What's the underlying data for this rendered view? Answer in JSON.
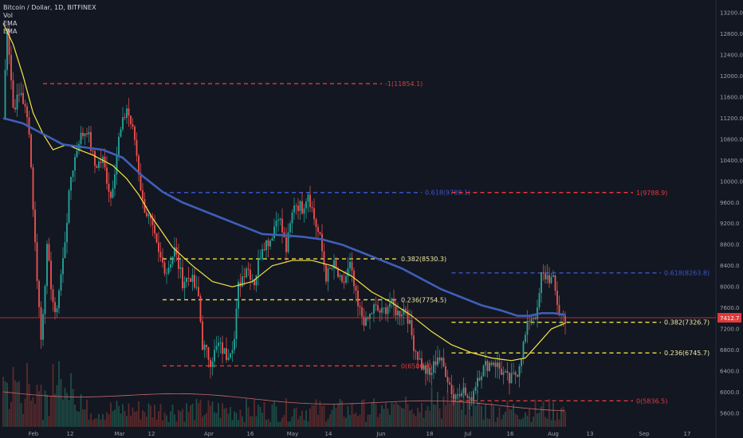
{
  "header": {
    "symbol": "Bitcoin / Dollar, 1D, BITFINEX",
    "ind1": "Vol",
    "ind2": "EMA",
    "ind3": "EMA"
  },
  "colors": {
    "bg": "#131722",
    "up": "#26a69a",
    "down": "#ef5350",
    "ema_fast": "#f5e642",
    "ema_slow": "#3f5fb8",
    "fib_red": "#e03a3a",
    "fib_blue": "#3a55c8",
    "fib_yellow": "#f0e040",
    "price_line": "#e03a3a",
    "vol": "#5b2a2c"
  },
  "chart_data": {
    "type": "candlestick",
    "title": "Bitcoin / Dollar, 1D, BITFINEX",
    "x_ticks": [
      "Feb",
      "12",
      "Mar",
      "12",
      "Apr",
      "16",
      "May",
      "14",
      "Jun",
      "18",
      "Jul",
      "16",
      "Aug",
      "13",
      "Sep",
      "17"
    ],
    "y_ticks": [
      13200.0,
      12800.0,
      12400.0,
      12000.0,
      11600.0,
      11200.0,
      10800.0,
      10400.0,
      10000.0,
      9600.0,
      9200.0,
      8800.0,
      8400.0,
      8000.0,
      7600.0,
      7200.0,
      6800.0,
      6400.0,
      6000.0,
      5600.0
    ],
    "ylim": [
      5500,
      13300
    ],
    "current_price": "7412.7",
    "close_path": [
      [
        0,
        11200
      ],
      [
        2,
        13000
      ],
      [
        5,
        11400
      ],
      [
        9,
        11700
      ],
      [
        13,
        11000
      ],
      [
        16,
        8800
      ],
      [
        19,
        7000
      ],
      [
        22,
        8700
      ],
      [
        26,
        7400
      ],
      [
        30,
        8500
      ],
      [
        34,
        10100
      ],
      [
        38,
        10800
      ],
      [
        42,
        11000
      ],
      [
        46,
        10300
      ],
      [
        50,
        10400
      ],
      [
        54,
        9700
      ],
      [
        58,
        10800
      ],
      [
        62,
        11400
      ],
      [
        66,
        10800
      ],
      [
        70,
        9600
      ],
      [
        74,
        9200
      ],
      [
        78,
        8600
      ],
      [
        82,
        8300
      ],
      [
        86,
        8700
      ],
      [
        90,
        8100
      ],
      [
        94,
        8200
      ],
      [
        98,
        7800
      ],
      [
        100,
        6900
      ],
      [
        104,
        6600
      ],
      [
        108,
        6900
      ],
      [
        112,
        6700
      ],
      [
        116,
        7000
      ],
      [
        118,
        8000
      ],
      [
        122,
        8400
      ],
      [
        126,
        8100
      ],
      [
        130,
        8800
      ],
      [
        134,
        8900
      ],
      [
        138,
        9400
      ],
      [
        142,
        8700
      ],
      [
        146,
        9600
      ],
      [
        150,
        9500
      ],
      [
        153,
        9800
      ],
      [
        156,
        9300
      ],
      [
        159,
        8900
      ],
      [
        162,
        8200
      ],
      [
        166,
        8400
      ],
      [
        170,
        8000
      ],
      [
        174,
        8400
      ],
      [
        178,
        7600
      ],
      [
        182,
        7300
      ],
      [
        186,
        7600
      ],
      [
        190,
        7500
      ],
      [
        194,
        7700
      ],
      [
        198,
        7500
      ],
      [
        202,
        7600
      ],
      [
        206,
        6900
      ],
      [
        210,
        6500
      ],
      [
        214,
        6300
      ],
      [
        218,
        6700
      ],
      [
        222,
        6400
      ],
      [
        226,
        5900
      ],
      [
        230,
        6100
      ],
      [
        234,
        5800
      ],
      [
        238,
        6300
      ],
      [
        242,
        6500
      ],
      [
        246,
        6600
      ],
      [
        250,
        6400
      ],
      [
        254,
        6200
      ],
      [
        258,
        6400
      ],
      [
        261,
        6900
      ],
      [
        264,
        7400
      ],
      [
        268,
        7500
      ],
      [
        270,
        8200
      ],
      [
        273,
        8200
      ],
      [
        276,
        8100
      ],
      [
        279,
        7500
      ],
      [
        282,
        7400
      ]
    ],
    "series": [
      {
        "name": "EMA",
        "color": "#f5e642",
        "values": [
          [
            0,
            13000
          ],
          [
            5,
            12600
          ],
          [
            10,
            12000
          ],
          [
            15,
            11300
          ],
          [
            20,
            10900
          ],
          [
            25,
            10600
          ],
          [
            32,
            10700
          ],
          [
            38,
            10600
          ],
          [
            45,
            10500
          ],
          [
            55,
            10300
          ],
          [
            62,
            10050
          ],
          [
            68,
            9750
          ],
          [
            75,
            9300
          ],
          [
            85,
            8750
          ],
          [
            95,
            8400
          ],
          [
            105,
            8100
          ],
          [
            115,
            8000
          ],
          [
            125,
            8100
          ],
          [
            135,
            8400
          ],
          [
            145,
            8500
          ],
          [
            155,
            8500
          ],
          [
            165,
            8400
          ],
          [
            175,
            8200
          ],
          [
            185,
            7900
          ],
          [
            195,
            7700
          ],
          [
            205,
            7450
          ],
          [
            215,
            7150
          ],
          [
            225,
            6900
          ],
          [
            235,
            6750
          ],
          [
            245,
            6650
          ],
          [
            255,
            6600
          ],
          [
            262,
            6650
          ],
          [
            268,
            6900
          ],
          [
            275,
            7200
          ],
          [
            282,
            7310
          ]
        ]
      },
      {
        "name": "EMA",
        "color": "#3f5fb8",
        "values": [
          [
            0,
            11200
          ],
          [
            5,
            11150
          ],
          [
            10,
            11100
          ],
          [
            20,
            10900
          ],
          [
            30,
            10700
          ],
          [
            40,
            10650
          ],
          [
            50,
            10600
          ],
          [
            60,
            10450
          ],
          [
            70,
            10100
          ],
          [
            80,
            9800
          ],
          [
            90,
            9600
          ],
          [
            100,
            9450
          ],
          [
            110,
            9300
          ],
          [
            120,
            9150
          ],
          [
            130,
            9000
          ],
          [
            140,
            8980
          ],
          [
            150,
            8950
          ],
          [
            160,
            8900
          ],
          [
            170,
            8800
          ],
          [
            180,
            8650
          ],
          [
            190,
            8500
          ],
          [
            200,
            8350
          ],
          [
            210,
            8150
          ],
          [
            220,
            7950
          ],
          [
            230,
            7800
          ],
          [
            240,
            7650
          ],
          [
            250,
            7550
          ],
          [
            258,
            7450
          ],
          [
            264,
            7450
          ],
          [
            270,
            7500
          ],
          [
            276,
            7500
          ],
          [
            282,
            7470
          ]
        ]
      }
    ],
    "fib_levels": [
      {
        "label": "-1(11854.1)",
        "value": 11854.1,
        "x0": 20,
        "x1": 190,
        "color": "#e03a3a"
      },
      {
        "label": "0.618(9789.1)",
        "value": 9789.1,
        "x0": 80,
        "x1": 210,
        "color": "#3a55c8"
      },
      {
        "label": "1(9788.9)",
        "value": 9788.9,
        "x0": 225,
        "x1": 316,
        "color": "#e03a3a"
      },
      {
        "label": "0.382(8530.3)",
        "value": 8530.3,
        "x0": 80,
        "x1": 198,
        "color": "#f0e040"
      },
      {
        "label": "0.618(8263.8)",
        "value": 8263.8,
        "x0": 225,
        "x1": 330,
        "color": "#3a55c8"
      },
      {
        "label": "0.236(7754.5)",
        "value": 7754.5,
        "x0": 80,
        "x1": 198,
        "color": "#f0e040"
      },
      {
        "label": "0.382(7326.7)",
        "value": 7326.7,
        "x0": 225,
        "x1": 330,
        "color": "#f0e040"
      },
      {
        "label": "0.236(6745.7)",
        "value": 6745.7,
        "x0": 225,
        "x1": 330,
        "color": "#f0e040"
      },
      {
        "label": "0(6500.4)",
        "value": 6500.4,
        "x0": 80,
        "x1": 198,
        "color": "#e03a3a"
      },
      {
        "label": "0(5836.5)",
        "value": 5836.5,
        "x0": 225,
        "x1": 316,
        "color": "#e03a3a"
      }
    ]
  }
}
